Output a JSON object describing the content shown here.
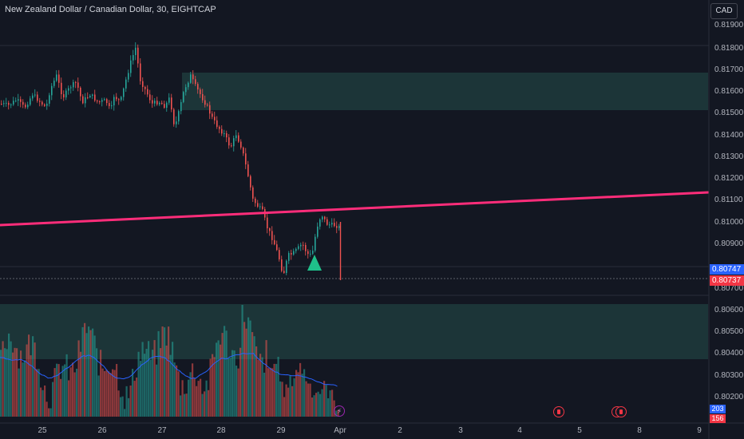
{
  "header": {
    "title": "New Zealand Dollar / Canadian Dollar, 30, EIGHTCAP",
    "currency": "CAD"
  },
  "price_axis": [
    "0.81900",
    "0.81800",
    "0.81700",
    "0.81600",
    "0.81500",
    "0.81400",
    "0.81300",
    "0.81200",
    "0.81100",
    "0.81000",
    "0.80900",
    "0.80700",
    "0.80600",
    "0.80500",
    "0.80400",
    "0.80300",
    "0.80200"
  ],
  "price_tags": {
    "bid": "0.80747",
    "last": "0.80737"
  },
  "volume_tags": {
    "volume": "203",
    "volume_ma": "156"
  },
  "time_axis": [
    "25",
    "26",
    "27",
    "28",
    "29",
    "Apr",
    "2",
    "3",
    "4",
    "5",
    "8",
    "9"
  ],
  "colors": {
    "background": "#131722",
    "up": "#26a69a",
    "down": "#ef5350",
    "trendline": "#ff2d7a",
    "zone": "#1e3b3c",
    "arrow": "#1fc08a",
    "ma": "#2962ff",
    "bid_tag": "#2962ff",
    "last_tag": "#f23645"
  },
  "icons": {
    "event_1": "flag-event-icon",
    "event_2": "flag-event-icon",
    "lightning": "lightning-icon"
  }
}
